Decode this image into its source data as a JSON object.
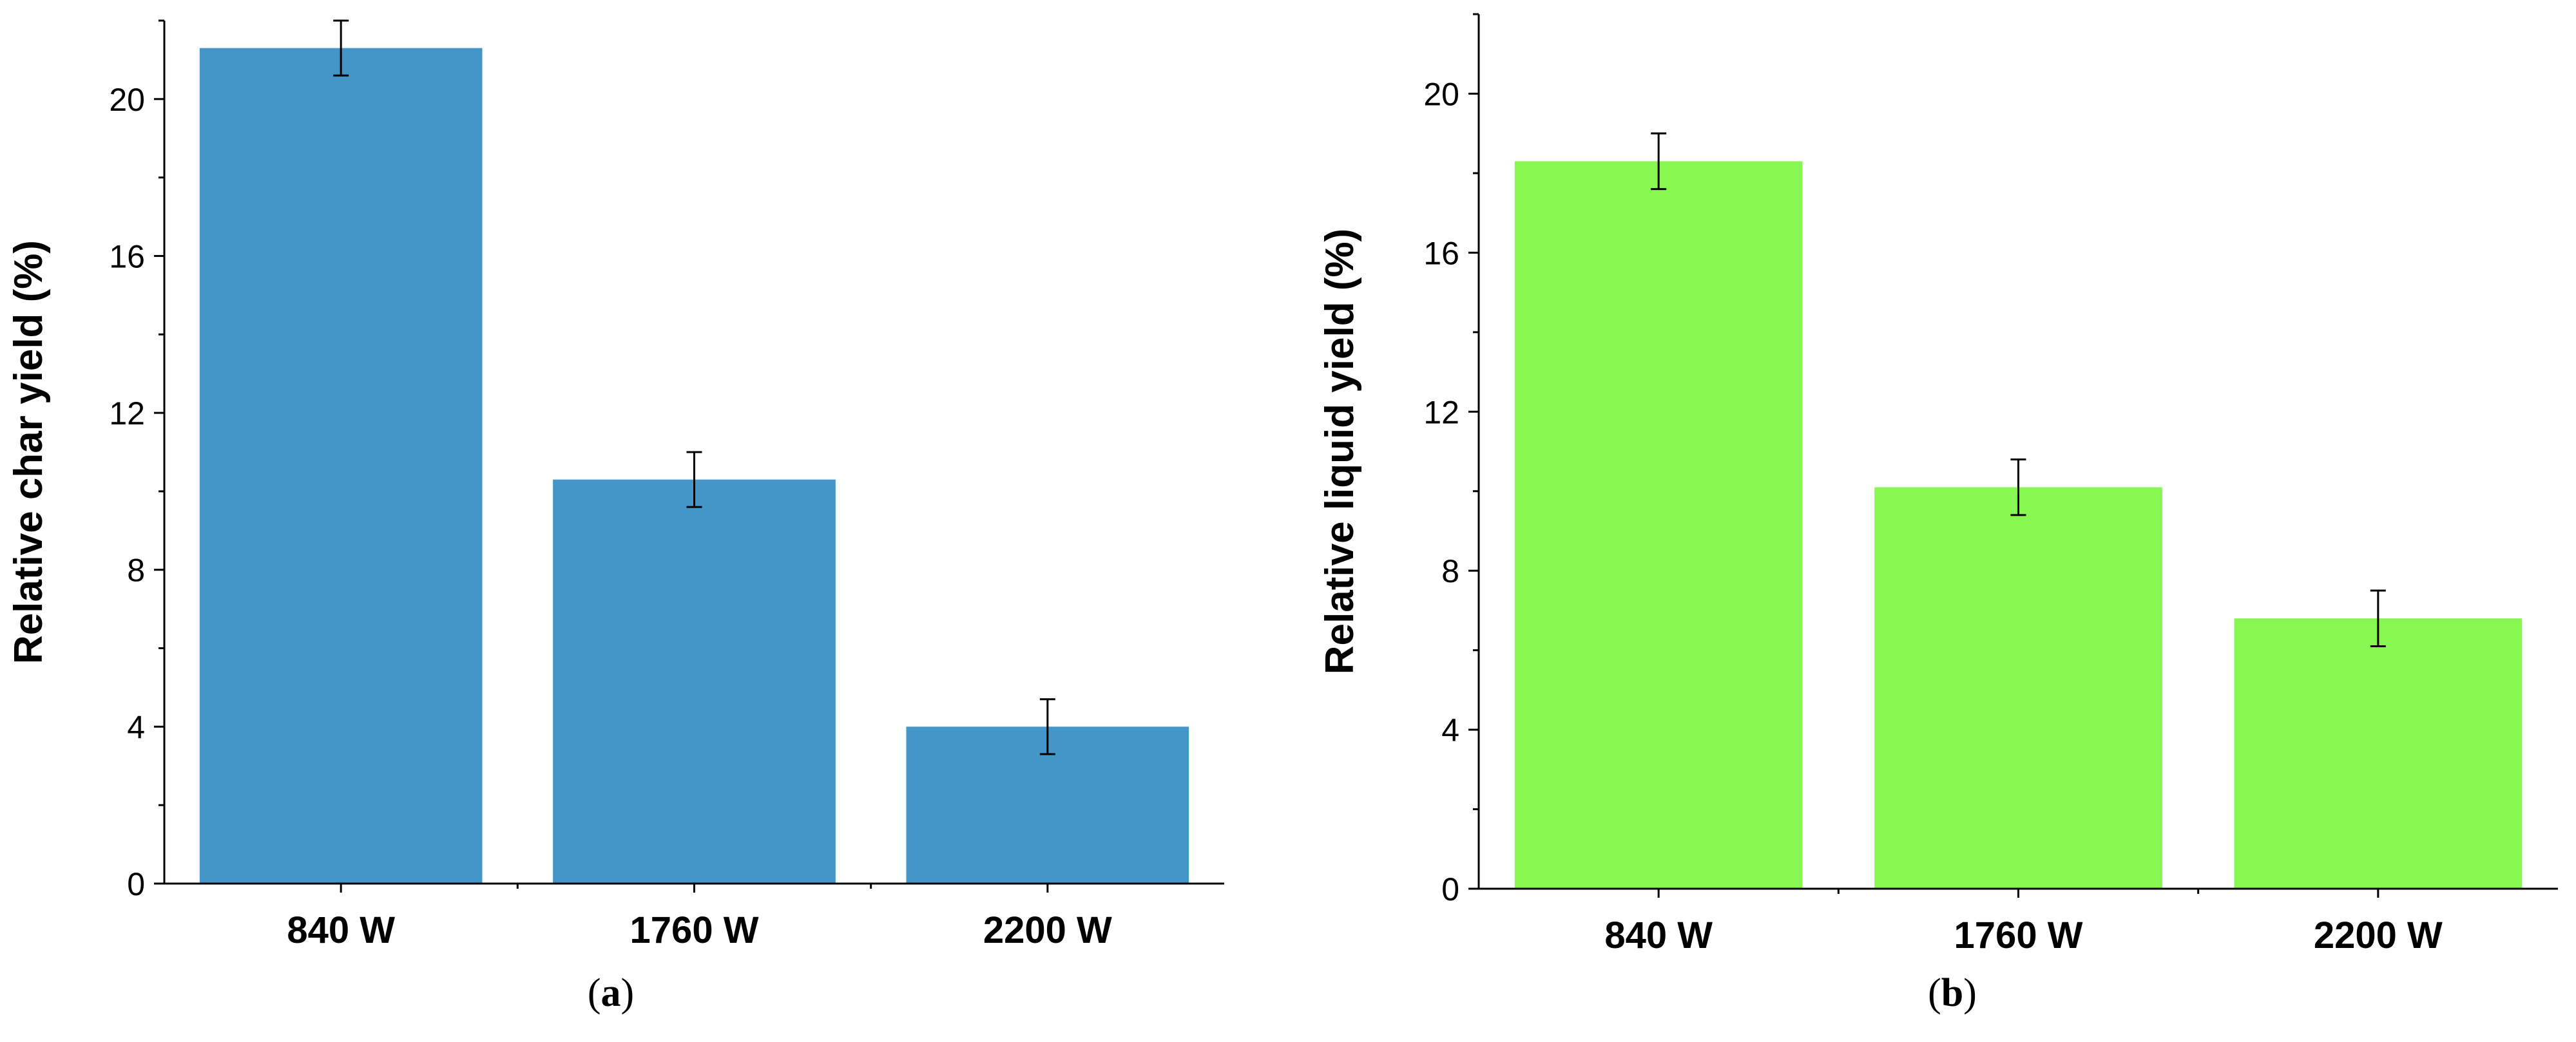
{
  "chart_data": [
    {
      "type": "bar",
      "panel_label": "a",
      "categories": [
        "840 W",
        "1760 W",
        "2200 W"
      ],
      "values": [
        21.3,
        10.3,
        4.0
      ],
      "errors": [
        0.7,
        0.7,
        0.7
      ],
      "ylabel": "Relative char yield (%)",
      "xlabel": "",
      "ylim": [
        0,
        22
      ],
      "yticks": [
        0,
        4,
        8,
        12,
        16,
        20
      ],
      "color": "#4396c7",
      "grid": false
    },
    {
      "type": "bar",
      "panel_label": "b",
      "categories": [
        "840 W",
        "1760 W",
        "2200 W"
      ],
      "values": [
        18.3,
        10.1,
        6.8
      ],
      "errors": [
        0.7,
        0.7,
        0.7
      ],
      "ylabel": "Relative liquid yield (%)",
      "xlabel": "",
      "ylim": [
        0,
        22
      ],
      "yticks": [
        0,
        4,
        8,
        12,
        16,
        20
      ],
      "color": "#88f752",
      "grid": false
    }
  ]
}
